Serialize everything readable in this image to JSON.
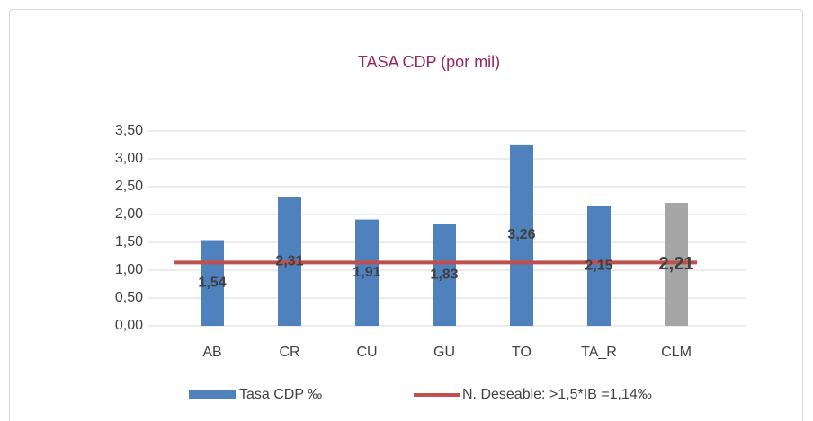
{
  "chart_data": {
    "type": "bar",
    "title": "TASA CDP (por mil)",
    "categories": [
      "AB",
      "CR",
      "CU",
      "GU",
      "TO",
      "TA_R",
      "CLM"
    ],
    "series": [
      {
        "name": "Tasa CDP ‰",
        "color": "#4f81bd",
        "colors": [
          "#4f81bd",
          "#4f81bd",
          "#4f81bd",
          "#4f81bd",
          "#4f81bd",
          "#4f81bd",
          "#a5a5a5"
        ],
        "values": [
          1.54,
          2.31,
          1.91,
          1.83,
          3.26,
          2.15,
          2.21
        ],
        "value_labels": [
          "1,54",
          "2,31",
          "1,91",
          "1,83",
          "3,26",
          "2,15",
          "2,21"
        ]
      }
    ],
    "reference_line": {
      "name": "N. Deseable: >1,5*IB =1,14‰",
      "color": "#c0504d",
      "value": 1.14
    },
    "ylim": [
      0,
      3.5
    ],
    "yticks": [
      {
        "value": 0,
        "label": "0,00"
      },
      {
        "value": 0.5,
        "label": "0,50"
      },
      {
        "value": 1,
        "label": "1,00"
      },
      {
        "value": 1.5,
        "label": "1,50"
      },
      {
        "value": 2,
        "label": "2,00"
      },
      {
        "value": 2.5,
        "label": "2,50"
      },
      {
        "value": 3,
        "label": "3,00"
      },
      {
        "value": 3.5,
        "label": "3,50"
      }
    ],
    "grid": true
  }
}
